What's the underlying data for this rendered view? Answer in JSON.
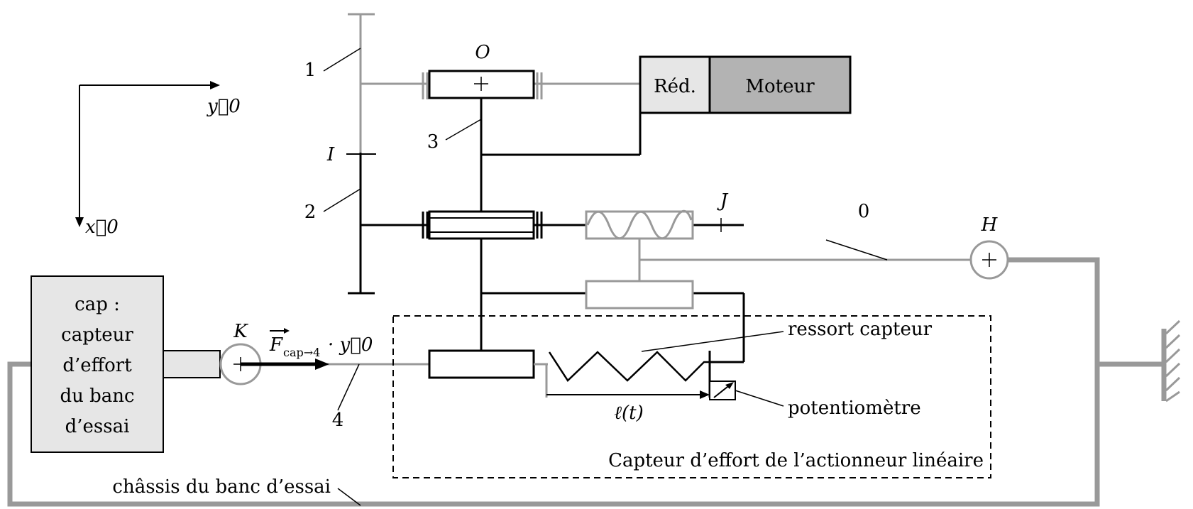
{
  "axes": {
    "y0": "y⃗0",
    "x0": "x⃗0"
  },
  "points": {
    "O": "O",
    "I": "I",
    "J": "J",
    "H": "H",
    "K": "K"
  },
  "parts": {
    "p1": "1",
    "p2": "2",
    "p3": "3",
    "p0": "0",
    "p4": "4"
  },
  "blocks": {
    "reducer": "Réd.",
    "motor": "Moteur",
    "cap_lines": [
      "cap :",
      "capteur",
      "d’effort",
      "du banc",
      "d’essai"
    ]
  },
  "labels": {
    "force_main": "F",
    "force_sub": "cap→4",
    "force_dot": "· y⃗0",
    "ressort": "ressort capteur",
    "potentiometre": "potentiomètre",
    "length": "ℓ(t)",
    "capteur_box": "Capteur d’effort de l’actionneur linéaire",
    "chassis": "châssis du banc d’essai"
  },
  "colors": {
    "black": "#000000",
    "gray_link": "#999999",
    "light_fill": "#e6e6e6",
    "motor_fill": "#b3b3b3"
  }
}
